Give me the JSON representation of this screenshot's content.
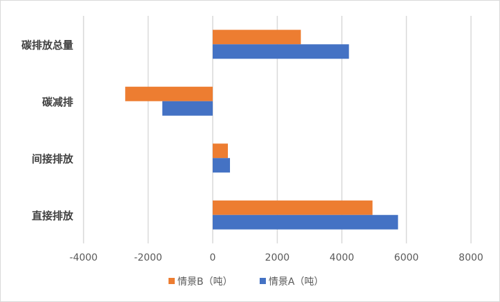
{
  "chart_data": {
    "type": "bar",
    "orientation": "horizontal",
    "categories": [
      "碳排放总量",
      "碳减排",
      "间接排放",
      "直接排放"
    ],
    "series": [
      {
        "name": "情景B（吨）",
        "color": "#ED7D31",
        "values": [
          2730,
          -2710,
          470,
          4950
        ]
      },
      {
        "name": "情景A（吨）",
        "color": "#4472C4",
        "values": [
          4220,
          -1560,
          535,
          5740
        ]
      }
    ],
    "xlim": [
      -4000,
      8000
    ],
    "xticks": [
      "-4000",
      "-2000",
      "0",
      "2000",
      "4000",
      "6000",
      "8000"
    ],
    "grid": true,
    "legend": "bottom",
    "title": "",
    "xlabel": "",
    "ylabel": ""
  }
}
